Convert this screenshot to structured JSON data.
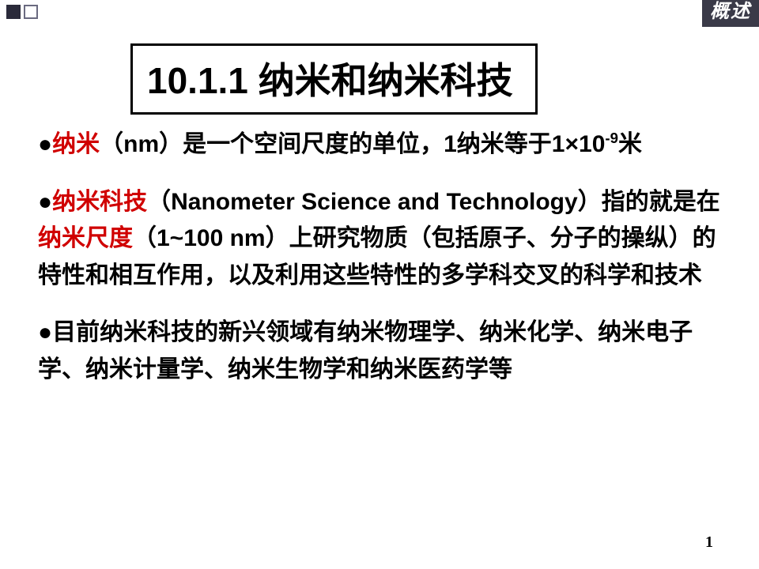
{
  "badge": "概述",
  "title": "10.1.1 纳米和纳米科技",
  "p1": {
    "bullet": "●",
    "red1": "纳米",
    "t1": "（nm）是一个空间尺度的单位，1纳米等于1×10",
    "sup": "-9",
    "t2": "米"
  },
  "p2": {
    "bullet": "●",
    "red1": "纳米科技",
    "t1": "（Nanometer Science and Technology）指的就是在",
    "red2": "纳米尺度",
    "t2": "（1~100 nm）上研究物质（包括原子、分子的操纵）的特性和相互作用，以及利用这些特性的多学科交叉的科学和技术"
  },
  "p3": {
    "bullet": "●",
    "t1": "目前纳米科技的新兴领域有纳米物理学、纳米化学、纳米电子学、纳米计量学、纳米生物学和纳米医药学等"
  },
  "page": "1",
  "colors": {
    "red": "#d00000",
    "badge_bg": "#3a3a48",
    "text": "#000000",
    "bg": "#ffffff"
  }
}
